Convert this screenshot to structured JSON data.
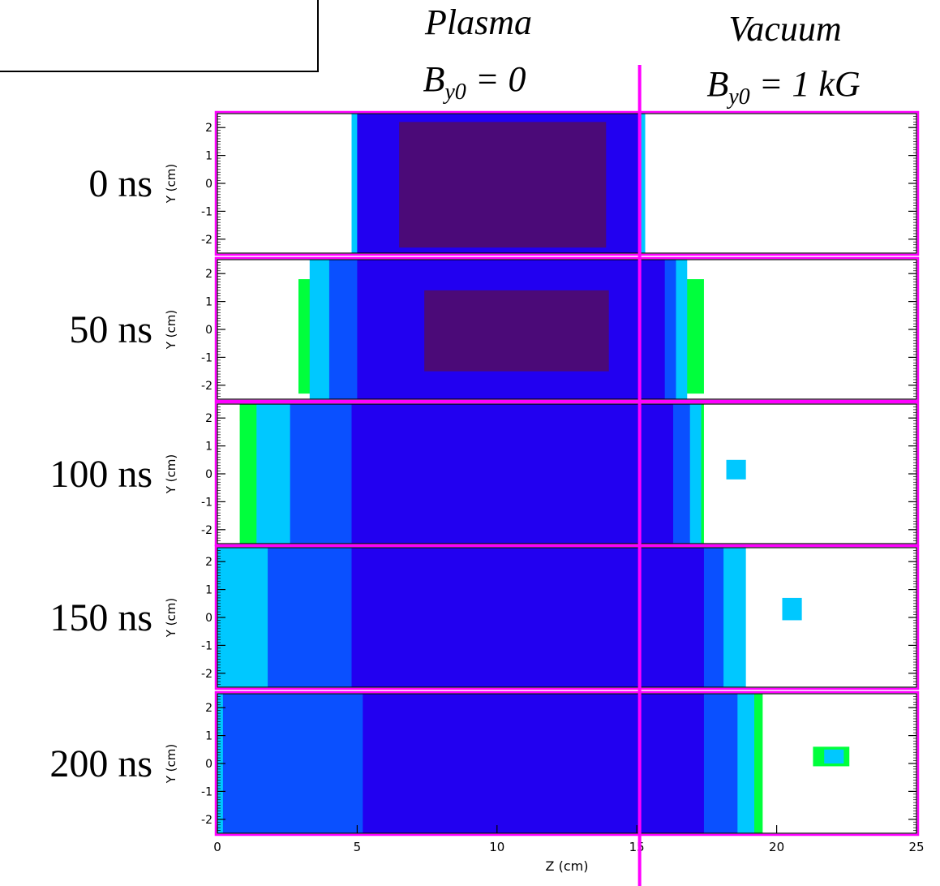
{
  "header": {
    "plasma": {
      "name": "Plasma",
      "b_symbol": "B",
      "b_subscript": "y0",
      "b_value": " = 0"
    },
    "vacuum": {
      "name": "Vacuum",
      "b_symbol": "B",
      "b_subscript": "y0",
      "b_value": " = 1 kG"
    }
  },
  "colors": {
    "frame": "#ff00ff",
    "divider": "#ff00ff",
    "core_dark": "#4b0a78",
    "main_blue": "#2200f0",
    "mid_blue": "#0a50ff",
    "cyan": "#00c8ff",
    "light_cyan": "#3cf0ff",
    "green": "#00ff3c",
    "yellow": "#fff000"
  },
  "chart_data": {
    "type": "heatmap",
    "panels": [
      {
        "label": "0 ns",
        "time_ns": 0,
        "ylabel": "Y (cm)"
      },
      {
        "label": "50 ns",
        "time_ns": 50,
        "ylabel": "Y (cm)"
      },
      {
        "label": "100 ns",
        "time_ns": 100,
        "ylabel": "Y (cm)"
      },
      {
        "label": "150 ns",
        "time_ns": 150,
        "ylabel": "Y (cm)"
      },
      {
        "label": "200 ns",
        "time_ns": 200,
        "ylabel": "Y (cm)"
      }
    ],
    "xlabel": "Z (cm)",
    "xlim": [
      0,
      25
    ],
    "ylim": [
      -2.5,
      2.5
    ],
    "xticks": [
      "0",
      "5",
      "10",
      "15",
      "20",
      "25"
    ],
    "yticks": [
      "2",
      "1",
      "0",
      "-1",
      "-2"
    ],
    "divider_z": 15.1,
    "regions": [
      {
        "panel": 0,
        "z0": 4.8,
        "z1": 15.3,
        "level": "cyan"
      },
      {
        "panel": 0,
        "z0": 5.0,
        "z1": 15.1,
        "level": "main_blue"
      },
      {
        "panel": 0,
        "z0": 6.5,
        "z1": 13.9,
        "y0": -2.3,
        "y1": 2.2,
        "level": "core_dark"
      },
      {
        "panel": 1,
        "z0": 2.9,
        "z1": 17.4,
        "y0": -2.3,
        "y1": 1.8,
        "level": "green"
      },
      {
        "panel": 1,
        "z0": 3.3,
        "z1": 16.8,
        "level": "cyan"
      },
      {
        "panel": 1,
        "z0": 4.0,
        "z1": 16.4,
        "level": "mid_blue"
      },
      {
        "panel": 1,
        "z0": 5.0,
        "z1": 16.0,
        "level": "main_blue"
      },
      {
        "panel": 1,
        "z0": 7.4,
        "z1": 14.0,
        "y0": -1.5,
        "y1": 1.4,
        "level": "core_dark"
      },
      {
        "panel": 2,
        "z0": 0.8,
        "z1": 1.2,
        "y0": 1.9,
        "y1": 2.5,
        "level": "yellow"
      },
      {
        "panel": 2,
        "z0": 0.8,
        "z1": 17.4,
        "level": "green"
      },
      {
        "panel": 2,
        "z0": 1.4,
        "z1": 17.3,
        "level": "cyan"
      },
      {
        "panel": 2,
        "z0": 2.6,
        "z1": 16.9,
        "level": "mid_blue"
      },
      {
        "panel": 2,
        "z0": 4.8,
        "z1": 16.3,
        "level": "main_blue"
      },
      {
        "panel": 2,
        "z0": 18.2,
        "z1": 18.9,
        "y0": -0.2,
        "y1": 0.5,
        "level": "cyan"
      },
      {
        "panel": 3,
        "z0": 0.0,
        "z1": 18.9,
        "level": "cyan"
      },
      {
        "panel": 3,
        "z0": 1.8,
        "z1": 18.1,
        "level": "mid_blue"
      },
      {
        "panel": 3,
        "z0": 4.8,
        "z1": 17.4,
        "level": "main_blue"
      },
      {
        "panel": 3,
        "z0": 20.2,
        "z1": 20.9,
        "y0": -0.1,
        "y1": 0.7,
        "level": "cyan"
      },
      {
        "panel": 4,
        "z0": 0.0,
        "z1": 19.5,
        "level": "green"
      },
      {
        "panel": 4,
        "z0": 0.0,
        "z1": 19.2,
        "level": "cyan"
      },
      {
        "panel": 4,
        "z0": 0.2,
        "z1": 18.6,
        "level": "mid_blue"
      },
      {
        "panel": 4,
        "z0": 5.2,
        "z1": 17.4,
        "level": "main_blue"
      },
      {
        "panel": 4,
        "z0": 21.3,
        "z1": 22.6,
        "y0": -0.1,
        "y1": 0.6,
        "level": "green"
      },
      {
        "panel": 4,
        "z0": 21.7,
        "z1": 22.4,
        "y0": 0.0,
        "y1": 0.5,
        "level": "cyan"
      }
    ]
  }
}
